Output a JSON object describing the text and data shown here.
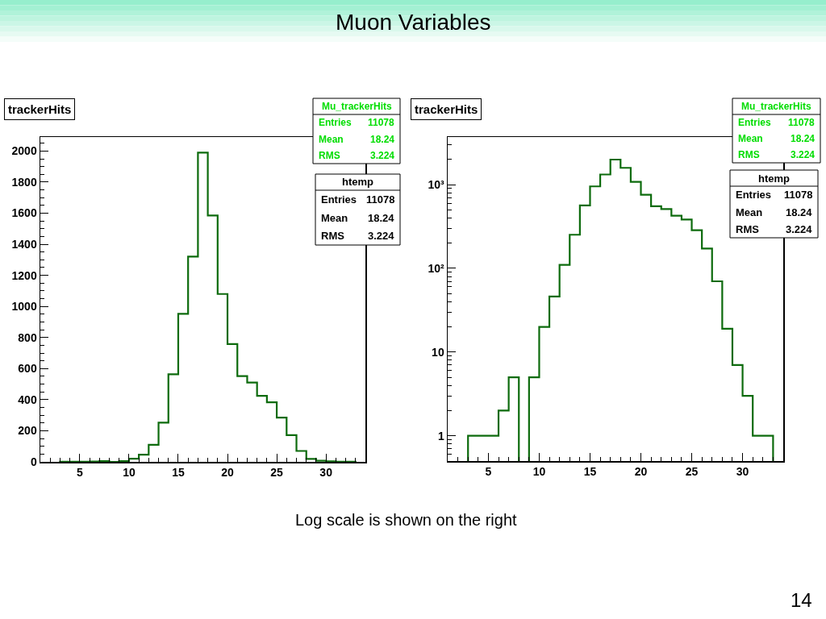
{
  "chart_data": [
    {
      "type": "other",
      "title": "Muon Variables",
      "annotations": [
        "Log scale is shown on the right",
        "14"
      ]
    },
    {
      "type": "histogram",
      "title": "trackerHits",
      "bins": [
        3,
        4,
        5,
        6,
        7,
        8,
        9,
        10,
        11,
        12,
        13,
        14,
        15,
        16,
        17,
        18,
        19,
        20,
        21,
        22,
        23,
        24,
        25,
        26,
        27,
        28,
        29,
        30,
        31,
        32,
        33
      ],
      "values": [
        1,
        1,
        1,
        2,
        5,
        0,
        5,
        20,
        46,
        110,
        252,
        563,
        952,
        1320,
        1990,
        1585,
        1080,
        758,
        552,
        510,
        425,
        383,
        285,
        172,
        70,
        19,
        7,
        3,
        1,
        1
      ],
      "color": "#0d6b0d",
      "xlim": [
        1,
        34
      ],
      "xticks": [
        5,
        10,
        15,
        20,
        25,
        30
      ],
      "ylim": [
        0,
        2090
      ],
      "yticks": [
        0,
        200,
        400,
        600,
        800,
        1000,
        1200,
        1400,
        1600,
        1800,
        2000
      ],
      "annotations": [
        "Mu_trackerHits",
        "Entries",
        "11078",
        "Mean",
        "18.24",
        "RMS",
        "3.224",
        "htemp",
        "Entries",
        "11078",
        "Mean",
        "18.24",
        "RMS",
        "3.224"
      ]
    },
    {
      "type": "histogram",
      "title": "trackerHits",
      "bins": [
        3,
        4,
        5,
        6,
        7,
        8,
        9,
        10,
        11,
        12,
        13,
        14,
        15,
        16,
        17,
        18,
        19,
        20,
        21,
        22,
        23,
        24,
        25,
        26,
        27,
        28,
        29,
        30,
        31,
        32,
        33
      ],
      "values": [
        1,
        1,
        1,
        2,
        5,
        null,
        5,
        20,
        46,
        110,
        252,
        563,
        952,
        1320,
        1990,
        1585,
        1080,
        758,
        552,
        510,
        425,
        383,
        285,
        172,
        70,
        19,
        7,
        3,
        1,
        1
      ],
      "color": "#0d6b0d",
      "log": true,
      "xlim": [
        1,
        34
      ],
      "xticks": [
        5,
        10,
        15,
        20,
        25,
        30
      ],
      "ylim": [
        0.5,
        3700
      ],
      "yticks": [
        1,
        10,
        {
          "value": 100,
          "label": "10²"
        },
        {
          "value": 1000,
          "label": "10³"
        }
      ],
      "annotations": [
        "Mu_trackerHits",
        "Entries",
        "11078",
        "Mean",
        "18.24",
        "RMS",
        "3.224",
        "htemp",
        "Entries",
        "11078",
        "Mean",
        "18.24",
        "RMS",
        "3.224"
      ]
    }
  ]
}
